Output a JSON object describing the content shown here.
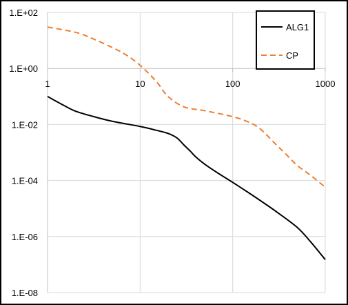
{
  "chart_data": {
    "type": "line",
    "title": "",
    "xlabel": "",
    "ylabel": "",
    "x_scale": "log",
    "y_scale": "log",
    "xlim": [
      1,
      1000
    ],
    "ylim": [
      1e-08,
      100
    ],
    "x_ticks": [
      {
        "value": 1,
        "label": "1"
      },
      {
        "value": 10,
        "label": "10"
      },
      {
        "value": 100,
        "label": "100"
      },
      {
        "value": 1000,
        "label": "1000"
      }
    ],
    "y_ticks": [
      {
        "value": 100,
        "label": "1.E+02"
      },
      {
        "value": 1,
        "label": "1.E+00"
      },
      {
        "value": 0.01,
        "label": "1.E-02"
      },
      {
        "value": 0.0001,
        "label": "1.E-04"
      },
      {
        "value": 1e-06,
        "label": "1.E-06"
      },
      {
        "value": 1e-08,
        "label": "1.E-08"
      }
    ],
    "grid": true,
    "legend_position": "top-right",
    "series": [
      {
        "name": "ALG1",
        "color": "#000000",
        "dash": "solid",
        "x": [
          1,
          1.5,
          2,
          3,
          5,
          10,
          15,
          20,
          25,
          30,
          35,
          40,
          50,
          70,
          100,
          150,
          200,
          300,
          500,
          700,
          1000
        ],
        "y": [
          0.1,
          0.048,
          0.03,
          0.02,
          0.013,
          0.0085,
          0.0062,
          0.0048,
          0.0033,
          0.0018,
          0.0011,
          0.00069,
          0.00038,
          0.00018,
          8.6e-05,
          3.6e-05,
          1.9e-05,
          7.5e-06,
          2.1e-06,
          6.3e-07,
          1.5e-07
        ]
      },
      {
        "name": "CP",
        "color": "#ED7D31",
        "dash": "dashed",
        "x": [
          1,
          2,
          3,
          5,
          7,
          10,
          15,
          20,
          30,
          50,
          100,
          150,
          200,
          300,
          400,
          500,
          700,
          1000
        ],
        "y": [
          30,
          19.5,
          12,
          5.6,
          3.1,
          1.3,
          0.34,
          0.1,
          0.042,
          0.031,
          0.019,
          0.012,
          0.0068,
          0.0018,
          0.00071,
          0.00034,
          0.00015,
          5.8e-05
        ]
      }
    ]
  },
  "legend": {
    "items": [
      {
        "label": "ALG1",
        "color": "#000000",
        "dash": "solid"
      },
      {
        "label": "CP",
        "color": "#ED7D31",
        "dash": "dashed"
      }
    ]
  }
}
